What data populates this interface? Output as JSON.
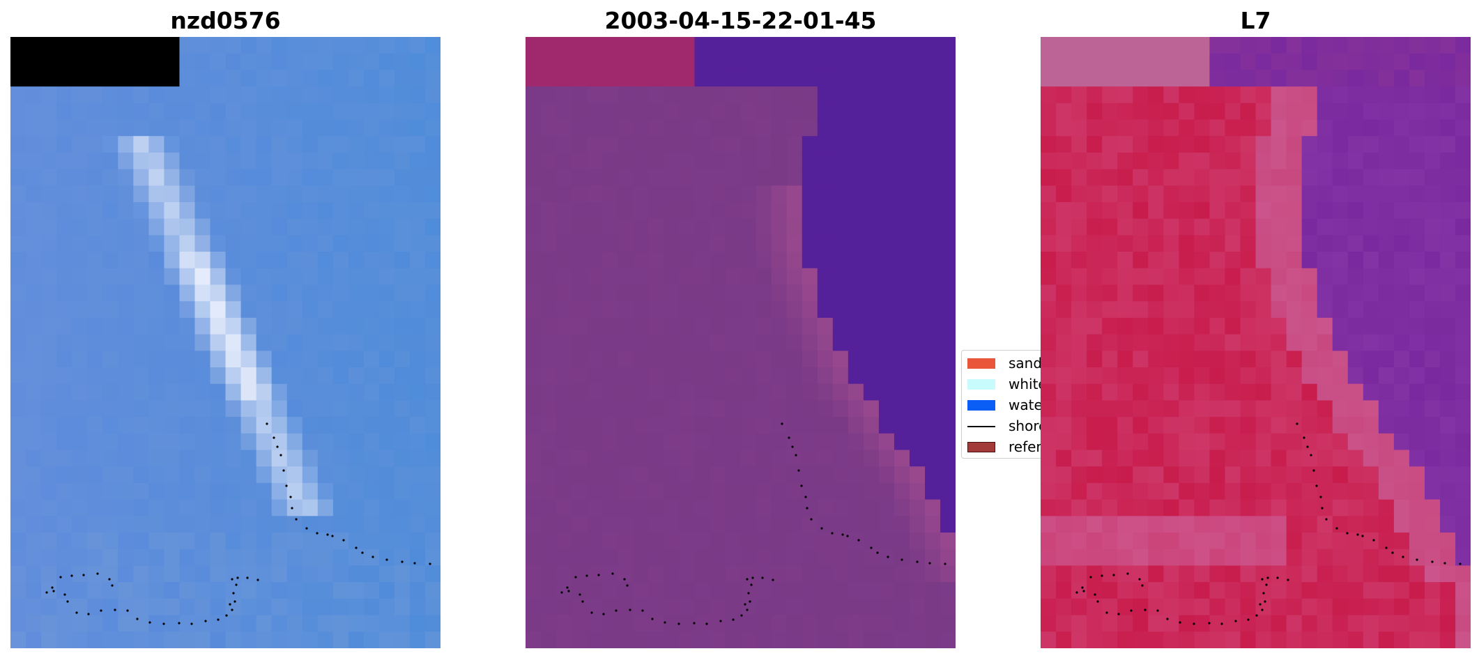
{
  "panels": [
    {
      "title": "nzd0576"
    },
    {
      "title": "2003-04-15-22-01-45"
    },
    {
      "title": "L7"
    }
  ],
  "legend": {
    "items": [
      {
        "label": "sand",
        "color": "#e9563a",
        "kind": "patch"
      },
      {
        "label": "white-water",
        "color": "#c8fcfc",
        "kind": "patch"
      },
      {
        "label": "water",
        "color": "#0a5ef5",
        "kind": "patch"
      },
      {
        "label": "shoreline",
        "color": "#000000",
        "kind": "line"
      },
      {
        "label": "reference shoreline",
        "color": "#a33a3a",
        "kind": "patch"
      }
    ]
  },
  "colors": {
    "rgb_water": "#4a88d8",
    "rgb_whitewater": "#f4f6ff",
    "class_overlay_land": "#7a3a86",
    "class_overlay_water": "#55219a",
    "class_nodata": "#a0286c",
    "index_land": "#c81c4c",
    "index_water": "#7a2a9e",
    "index_nodata": "#bd6496",
    "shoreline_dots": "#000000"
  }
}
